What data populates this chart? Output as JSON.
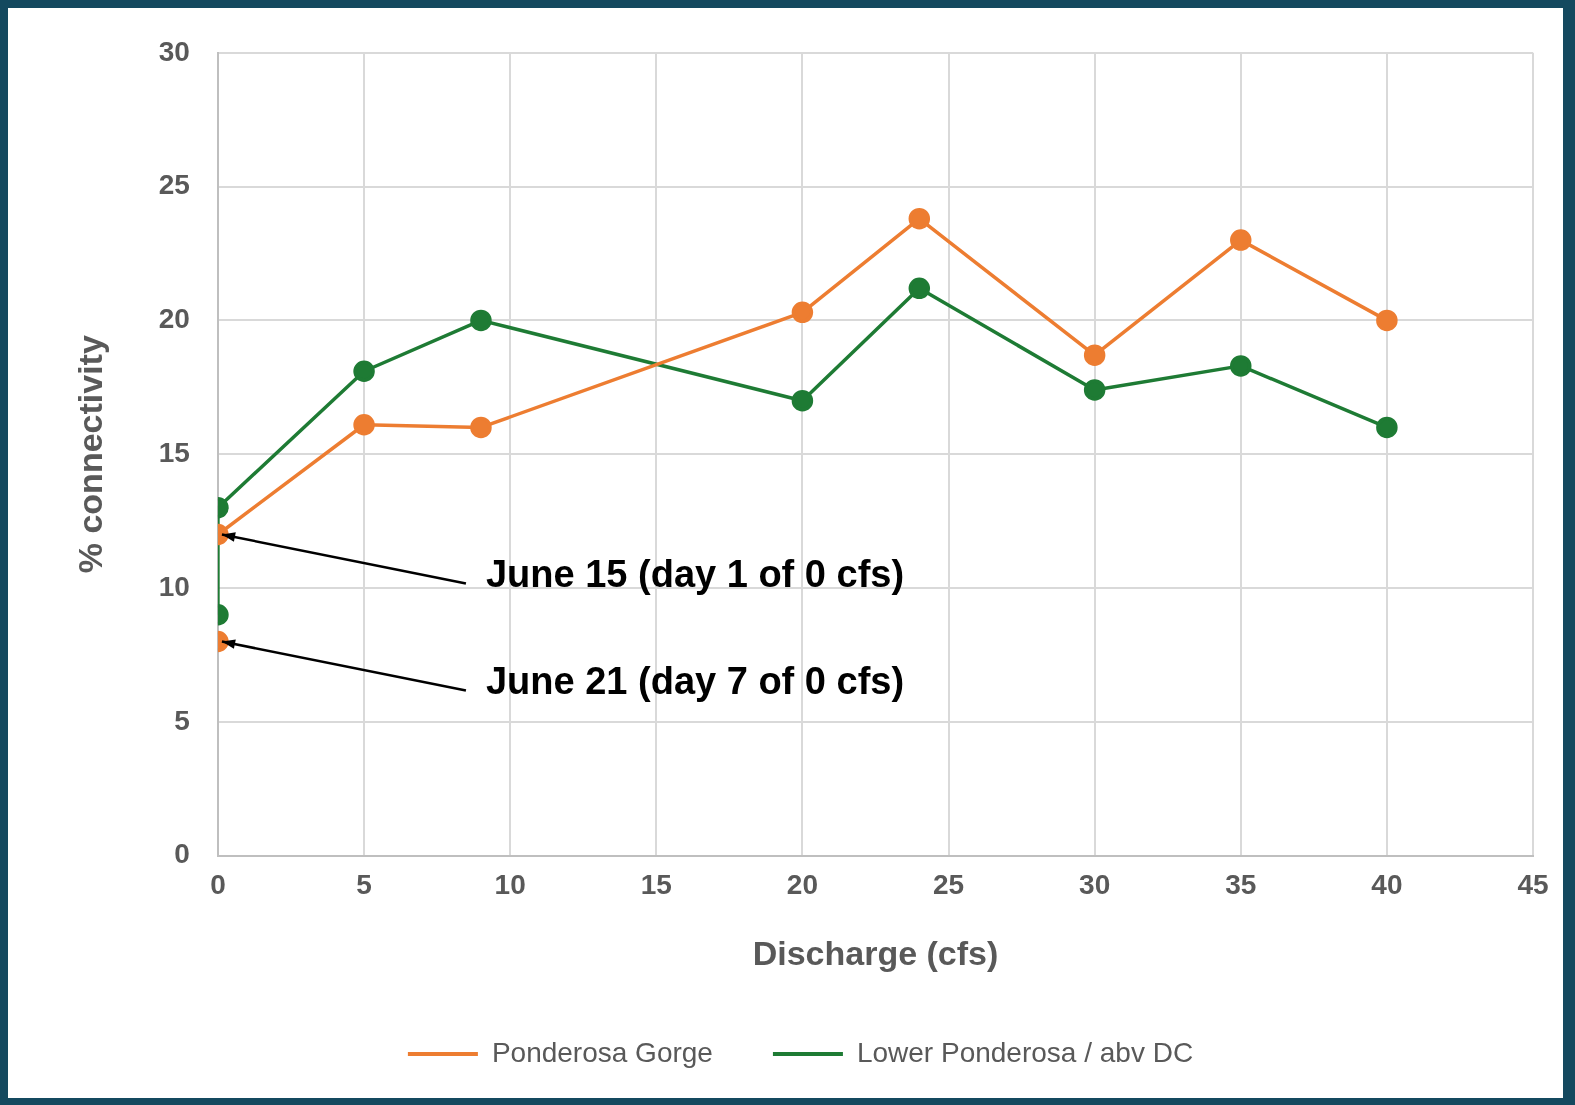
{
  "chart_data": {
    "type": "line",
    "xlabel": "Discharge (cfs)",
    "ylabel": "% connectivity",
    "xlim": [
      0,
      45
    ],
    "xticks": [
      0,
      5,
      10,
      15,
      20,
      25,
      30,
      35,
      40,
      45
    ],
    "ylim": [
      0,
      30
    ],
    "yticks": [
      0,
      5,
      10,
      15,
      20,
      25,
      30
    ],
    "grid": true,
    "legend": "bottom",
    "marker": "circle",
    "series": [
      {
        "name": "Ponderosa Gorge",
        "color": "#ed7d31",
        "x": [
          0,
          5,
          9,
          20,
          24,
          30,
          35,
          40
        ],
        "values": [
          12,
          16.1,
          16,
          20.3,
          23.8,
          18.7,
          23,
          20
        ]
      },
      {
        "type": "scatter",
        "color": "#ed7d31",
        "x": [
          0
        ],
        "values": [
          8
        ]
      },
      {
        "name": "Lower Ponderosa / abv DC",
        "color": "#1e7b34",
        "x": [
          0,
          0,
          5,
          9,
          20,
          24,
          30,
          35,
          40
        ],
        "values": [
          9,
          13,
          18.1,
          20,
          17,
          21.2,
          17.4,
          18.3,
          16
        ]
      }
    ],
    "annotations": [
      {
        "text": "June 15 (day 1 of 0 cfs)",
        "x": 0,
        "y": 12
      },
      {
        "text": "June 21 (day 7 of 0 cfs)",
        "x": 0,
        "y": 8
      }
    ]
  }
}
